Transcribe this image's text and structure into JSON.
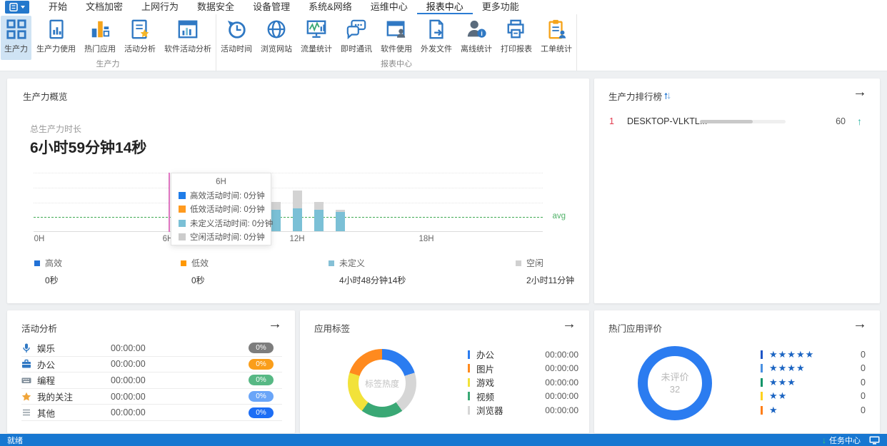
{
  "menubar": {
    "tabs": [
      "开始",
      "文档加密",
      "上网行为",
      "数据安全",
      "设备管理",
      "系统&网络",
      "运维中心",
      "报表中心",
      "更多功能"
    ],
    "active_tab": "报表中心"
  },
  "ribbon": {
    "groups": [
      {
        "label": "生产力",
        "items": [
          {
            "label": "生产力",
            "icon": "grid-icon",
            "active": true
          },
          {
            "label": "生产力使用",
            "icon": "doc-chart-icon"
          },
          {
            "label": "热门应用",
            "icon": "bars-icon"
          },
          {
            "label": "活动分析",
            "icon": "doc-star-icon"
          },
          {
            "label": "软件活动分析",
            "icon": "window-chart-icon"
          }
        ]
      },
      {
        "label": "报表中心",
        "items": [
          {
            "label": "活动时间",
            "icon": "clock-history-icon"
          },
          {
            "label": "浏览网站",
            "icon": "globe-icon"
          },
          {
            "label": "流量统计",
            "icon": "monitor-chart-icon"
          },
          {
            "label": "即时通讯",
            "icon": "chat-icon"
          },
          {
            "label": "软件使用",
            "icon": "window-user-icon"
          },
          {
            "label": "外发文件",
            "icon": "doc-export-icon"
          },
          {
            "label": "离线统计",
            "icon": "user-info-icon"
          },
          {
            "label": "打印报表",
            "icon": "printer-icon"
          },
          {
            "label": "工单统计",
            "icon": "clipboard-user-icon"
          }
        ]
      }
    ]
  },
  "overview": {
    "title": "生产力概览",
    "total_label": "总生产力时长",
    "total_value": "6小时59分钟14秒",
    "avg_label": "avg",
    "x_ticks": [
      "0H",
      "6H",
      "12H",
      "18H"
    ],
    "tooltip": {
      "title": "6H",
      "rows": [
        {
          "label": "高效活动时间: 0分钟",
          "color": "#1f7ce8"
        },
        {
          "label": "低效活动时间: 0分钟",
          "color": "#ff9a1f"
        },
        {
          "label": "未定义活动时间: 0分钟",
          "color": "#7bc0d6"
        },
        {
          "label": "空闲活动时间: 0分钟",
          "color": "#cccccc"
        }
      ]
    },
    "legend": [
      {
        "label": "高效",
        "value": "0秒",
        "color": "#2171d6"
      },
      {
        "label": "低效",
        "value": "0秒",
        "color": "#ff9800"
      },
      {
        "label": "未定义",
        "value": "4小时48分钟14秒",
        "color": "#85c0d6"
      },
      {
        "label": "空闲",
        "value": "2小时11分钟",
        "color": "#d0d0d0"
      }
    ],
    "chart": {
      "type": "stacked-bar",
      "x_hours": [
        11,
        12,
        13,
        14
      ],
      "series": [
        {
          "name": "未定义",
          "color": "#7bc0d6",
          "values": [
            1.45,
            1.55,
            1.45,
            1.3
          ]
        },
        {
          "name": "空闲",
          "color": "#d3d3d3",
          "values": [
            0.55,
            1.2,
            0.55,
            0.15
          ]
        }
      ],
      "avg": 1.0,
      "ylim": [
        0,
        4
      ],
      "hover_hour": 6
    }
  },
  "ranking": {
    "title": "生产力排行榜",
    "rows": [
      {
        "rank": "1",
        "name": "DESKTOP-VLKTL...",
        "score": "60",
        "progress_pct": 62,
        "trend": "up"
      }
    ]
  },
  "activity": {
    "title": "活动分析",
    "rows": [
      {
        "icon": "microphone-icon",
        "label": "娱乐",
        "time": "00:00:00",
        "badge": "0%",
        "badge_color": "#7d7d7d"
      },
      {
        "icon": "briefcase-icon",
        "label": "办公",
        "time": "00:00:00",
        "badge": "0%",
        "badge_color": "#fa9e1b"
      },
      {
        "icon": "keyboard-icon",
        "label": "编程",
        "time": "00:00:00",
        "badge": "0%",
        "badge_color": "#57b884"
      },
      {
        "icon": "star-icon",
        "label": "我的关注",
        "time": "00:00:00",
        "badge": "0%",
        "badge_color": "#6aa5f8"
      },
      {
        "icon": "menu-lines-icon",
        "label": "其他",
        "time": "00:00:00",
        "badge": "0%",
        "badge_color": "#1d6ef5"
      }
    ]
  },
  "tags": {
    "title": "应用标签",
    "center_label": "标签热度",
    "legend": [
      {
        "label": "办公",
        "time": "00:00:00",
        "color": "#2b7cf0"
      },
      {
        "label": "图片",
        "time": "00:00:00",
        "color": "#ff8a1e"
      },
      {
        "label": "游戏",
        "time": "00:00:00",
        "color": "#f2e23a"
      },
      {
        "label": "视频",
        "time": "00:00:00",
        "color": "#3aa875"
      },
      {
        "label": "浏览器",
        "time": "00:00:00",
        "color": "#d6d6d6"
      }
    ],
    "donut_order_from_top": [
      "#2b7cf0",
      "#d6d6d6",
      "#3aa875",
      "#f2e23a",
      "#ff8a1e"
    ]
  },
  "ratings": {
    "title": "热门应用评价",
    "center_label": "未评价",
    "center_value": "32",
    "ring_color": "#2b7cf0",
    "star_color": "#1b64c2",
    "rows": [
      {
        "stars": 5,
        "count": "0",
        "tick_color": "#1e56c8"
      },
      {
        "stars": 4,
        "count": "0",
        "tick_color": "#4a90e2"
      },
      {
        "stars": 3,
        "count": "0",
        "tick_color": "#0e9468"
      },
      {
        "stars": 2,
        "count": "0",
        "tick_color": "#ffd21e"
      },
      {
        "stars": 1,
        "count": "0",
        "tick_color": "#ff7e17"
      }
    ]
  },
  "statusbar": {
    "left": "就绪",
    "task_center": "任务中心"
  }
}
